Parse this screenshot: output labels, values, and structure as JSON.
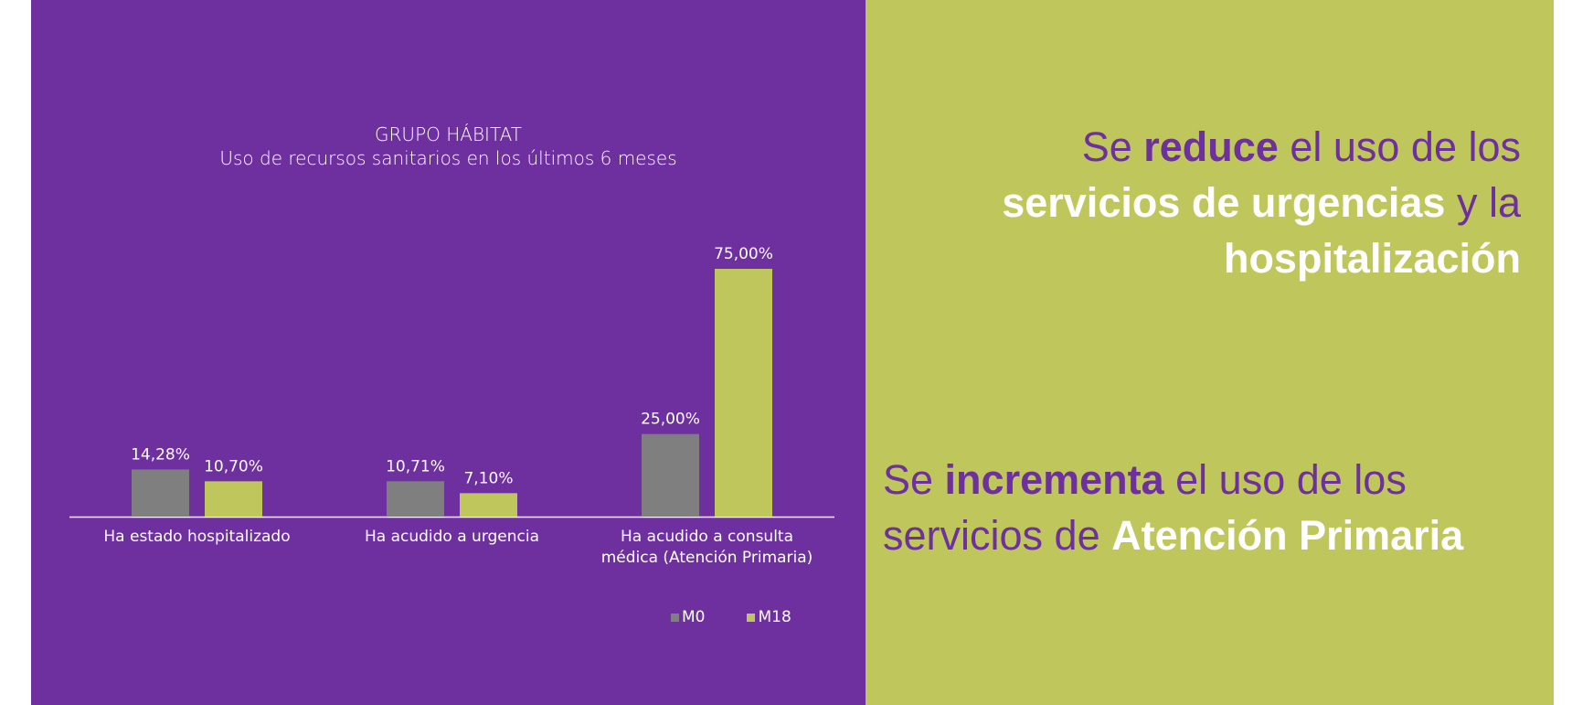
{
  "colors": {
    "purple": "#6e2f9f",
    "green": "#bfc65b",
    "gray": "#7f7f7f",
    "white": "#ffffff"
  },
  "chart_data": {
    "type": "bar",
    "title": "GRUPO HÁBITAT",
    "subtitle": "Uso de recursos sanitarios en los últimos 6 meses",
    "categories": [
      [
        "Ha estado hospitalizado"
      ],
      [
        "Ha acudido a urgencia"
      ],
      [
        "Ha acudido a consulta",
        "médica (Atención Primaria)"
      ]
    ],
    "series": [
      {
        "name": "M0",
        "values": [
          14.28,
          10.71,
          25.0
        ],
        "labels": [
          "14,28%",
          "10,71%",
          "25,00%"
        ],
        "color": "#7f7f7f"
      },
      {
        "name": "M18",
        "values": [
          10.7,
          7.1,
          75.0
        ],
        "labels": [
          "10,70%",
          "7,10%",
          "75,00%"
        ],
        "color": "#bfc65b"
      }
    ],
    "ylim": [
      0,
      75
    ],
    "grid": false,
    "legend": "bottom-right"
  },
  "messages": {
    "m1": {
      "l1a": "Se ",
      "l1b": "reduce",
      "l1c": " el uso de los",
      "l2a": "servicios de urgencias",
      "l2b": " y la",
      "l3": "hospitalización"
    },
    "m2": {
      "l1a": "Se ",
      "l1b": "incrementa",
      "l1c": " el uso de los",
      "l2a": "servicios de ",
      "l2b": "Atención Primaria"
    }
  }
}
